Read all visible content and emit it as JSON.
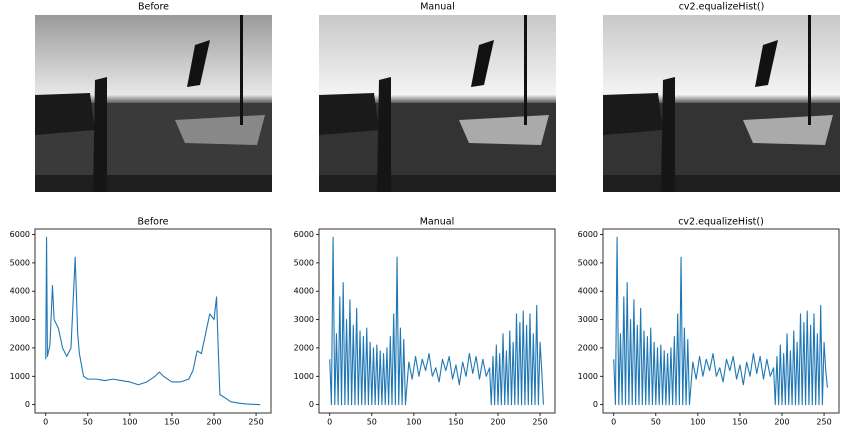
{
  "images": [
    {
      "title": "Before"
    },
    {
      "title": "Manual"
    },
    {
      "title": "cv2.equalizeHist()"
    }
  ],
  "chart_data": [
    {
      "type": "line",
      "title": "Before",
      "x": [
        0,
        1,
        2,
        5,
        8,
        10,
        15,
        20,
        25,
        30,
        35,
        38,
        40,
        45,
        50,
        60,
        70,
        80,
        90,
        100,
        110,
        120,
        130,
        135,
        140,
        150,
        160,
        170,
        175,
        180,
        185,
        190,
        195,
        200,
        203,
        205,
        207,
        210,
        215,
        220,
        230,
        240,
        255
      ],
      "series": [
        {
          "color": "#1f77b4",
          "values": [
            1600,
            5900,
            1700,
            2100,
            4200,
            3000,
            2700,
            2000,
            1700,
            2000,
            5200,
            2500,
            1800,
            1000,
            900,
            900,
            850,
            900,
            850,
            800,
            700,
            800,
            1000,
            1150,
            1000,
            800,
            800,
            900,
            1200,
            1900,
            1800,
            2500,
            3200,
            3000,
            3800,
            2000,
            350,
            300,
            200,
            100,
            50,
            20,
            0
          ]
        }
      ],
      "xlim": [
        -12.75,
        267.75
      ],
      "ylim": [
        -295,
        6195
      ],
      "xticks": [
        0,
        50,
        100,
        150,
        200,
        250
      ],
      "yticks": [
        0,
        1000,
        2000,
        3000,
        4000,
        5000,
        6000
      ]
    },
    {
      "type": "line",
      "title": "Manual",
      "x": [
        0,
        2,
        4,
        6,
        8,
        10,
        12,
        14,
        16,
        18,
        20,
        22,
        24,
        26,
        28,
        30,
        32,
        34,
        36,
        38,
        40,
        42,
        44,
        46,
        48,
        50,
        52,
        54,
        56,
        58,
        60,
        62,
        64,
        66,
        68,
        70,
        72,
        74,
        76,
        78,
        80,
        82,
        84,
        86,
        88,
        90,
        94,
        98,
        102,
        106,
        110,
        114,
        118,
        122,
        126,
        130,
        134,
        138,
        142,
        146,
        150,
        154,
        158,
        162,
        166,
        170,
        174,
        178,
        182,
        186,
        190,
        192,
        194,
        196,
        198,
        200,
        202,
        204,
        206,
        208,
        210,
        212,
        214,
        216,
        218,
        220,
        222,
        224,
        226,
        228,
        230,
        232,
        234,
        236,
        238,
        240,
        242,
        244,
        246,
        248,
        250,
        252,
        254
      ],
      "series": [
        {
          "color": "#1f77b4",
          "values": [
            1600,
            0,
            5900,
            0,
            2500,
            0,
            3800,
            0,
            4300,
            0,
            3000,
            0,
            3700,
            0,
            2800,
            0,
            3400,
            0,
            2600,
            0,
            2400,
            0,
            2700,
            0,
            2200,
            0,
            2000,
            0,
            2100,
            0,
            1900,
            0,
            1800,
            0,
            2000,
            0,
            2400,
            0,
            3200,
            0,
            5200,
            0,
            2700,
            0,
            2300,
            0,
            1500,
            900,
            1700,
            1000,
            1600,
            1200,
            1800,
            1000,
            1300,
            800,
            1600,
            1200,
            1700,
            900,
            1400,
            700,
            1500,
            1000,
            1800,
            1100,
            1700,
            900,
            1600,
            1000,
            1300,
            0,
            1700,
            0,
            2100,
            0,
            1800,
            0,
            2500,
            0,
            1900,
            0,
            2600,
            0,
            2200,
            0,
            3200,
            0,
            2900,
            0,
            3300,
            0,
            2800,
            0,
            3200,
            0,
            2500,
            0,
            3500,
            0,
            2200,
            1200,
            0
          ]
        }
      ],
      "xlim": [
        -12.75,
        267.75
      ],
      "ylim": [
        -295,
        6195
      ],
      "xticks": [
        0,
        50,
        100,
        150,
        200,
        250
      ],
      "yticks": [
        0,
        1000,
        2000,
        3000,
        4000,
        5000,
        6000
      ]
    },
    {
      "type": "line",
      "title": "cv2.equalizeHist()",
      "x": [
        0,
        2,
        4,
        6,
        8,
        10,
        12,
        14,
        16,
        18,
        20,
        22,
        24,
        26,
        28,
        30,
        32,
        34,
        36,
        38,
        40,
        42,
        44,
        46,
        48,
        50,
        52,
        54,
        56,
        58,
        60,
        62,
        64,
        66,
        68,
        70,
        72,
        74,
        76,
        78,
        80,
        82,
        84,
        86,
        88,
        90,
        94,
        98,
        102,
        106,
        110,
        114,
        118,
        122,
        126,
        130,
        134,
        138,
        142,
        146,
        150,
        154,
        158,
        162,
        166,
        170,
        174,
        178,
        182,
        186,
        190,
        192,
        194,
        196,
        198,
        200,
        202,
        204,
        206,
        208,
        210,
        212,
        214,
        216,
        218,
        220,
        222,
        224,
        226,
        228,
        230,
        232,
        234,
        236,
        238,
        240,
        242,
        244,
        246,
        248,
        250,
        252,
        254
      ],
      "series": [
        {
          "color": "#1f77b4",
          "values": [
            1600,
            0,
            5900,
            0,
            2500,
            0,
            3800,
            0,
            4300,
            0,
            3000,
            0,
            3700,
            0,
            2800,
            0,
            3400,
            0,
            2600,
            0,
            2400,
            0,
            2700,
            0,
            2200,
            0,
            2000,
            0,
            2100,
            0,
            1900,
            0,
            1800,
            0,
            2000,
            0,
            2400,
            0,
            3200,
            0,
            5200,
            0,
            2700,
            0,
            2300,
            0,
            1500,
            900,
            1700,
            1000,
            1600,
            1200,
            1800,
            1000,
            1300,
            800,
            1600,
            1200,
            1700,
            900,
            1400,
            700,
            1500,
            1000,
            1800,
            1100,
            1700,
            900,
            1600,
            1000,
            1300,
            0,
            1700,
            0,
            2100,
            0,
            1800,
            0,
            2500,
            0,
            1900,
            0,
            2600,
            0,
            2200,
            0,
            3200,
            0,
            2900,
            0,
            3300,
            0,
            2800,
            0,
            3200,
            0,
            2500,
            0,
            3500,
            0,
            2200,
            1200,
            600
          ]
        }
      ],
      "xlim": [
        -12.75,
        267.75
      ],
      "ylim": [
        -295,
        6195
      ],
      "xticks": [
        0,
        50,
        100,
        150,
        200,
        250
      ],
      "yticks": [
        0,
        1000,
        2000,
        3000,
        4000,
        5000,
        6000
      ]
    }
  ]
}
